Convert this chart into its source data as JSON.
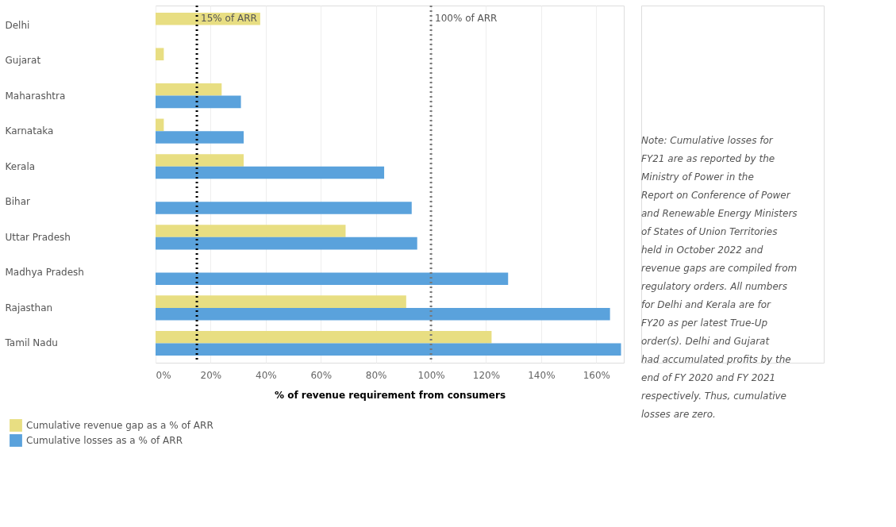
{
  "chart_data": {
    "type": "bar",
    "orientation": "horizontal",
    "xlabel": "% of revenue requirement from consumers",
    "categories": [
      "Delhi",
      "Gujarat",
      "Maharashtra",
      "Karnataka",
      "Kerala",
      "Bihar",
      "Uttar Pradesh",
      "Madhya Pradesh",
      "Rajasthan",
      "Tamil Nadu"
    ],
    "series": [
      {
        "name": "Cumulative revenue gap as a % of ARR",
        "color": "#e8de82",
        "values": [
          38,
          3,
          24,
          3,
          32,
          null,
          69,
          null,
          91,
          122
        ]
      },
      {
        "name": "Cumulative losses as a % of ARR",
        "color": "#5aa2dc",
        "values": [
          0,
          0,
          31,
          32,
          83,
          93,
          95,
          128,
          165,
          169
        ]
      }
    ],
    "xlim": [
      0,
      170
    ],
    "xticks": [
      {
        "value": 0,
        "label": "0%"
      },
      {
        "value": 20,
        "label": "20%"
      },
      {
        "value": 40,
        "label": "40%"
      },
      {
        "value": 60,
        "label": "60%"
      },
      {
        "value": 80,
        "label": "80%"
      },
      {
        "value": 100,
        "label": "100%"
      },
      {
        "value": 120,
        "label": "120%"
      },
      {
        "value": 140,
        "label": "140%"
      },
      {
        "value": 160,
        "label": "160%"
      }
    ],
    "ref_lines": [
      {
        "axis": "x",
        "value": 15,
        "label": "15% of ARR",
        "color": "#000000",
        "line_style": "dotted"
      },
      {
        "axis": "x",
        "value": 100,
        "label": "100% of ARR",
        "color": "#777777",
        "line_style": "dotted"
      }
    ],
    "grid": "x",
    "legend": "bottom left",
    "annotations": [
      "Note: Cumulative losses for FY21 are as reported by the Ministry of Power in the Report on Conference of Power and Renewable Energy Ministers of States of Union Territories held in October 2022 and revenue gaps are compiled from regulatory orders. All numbers for Delhi and Kerala are for FY20 as per latest True-Up order(s). Delhi and Gujarat had accumulated profits by the end of FY 2020 and FY 2021 respectively. Thus, cumulative losses are zero."
    ]
  }
}
